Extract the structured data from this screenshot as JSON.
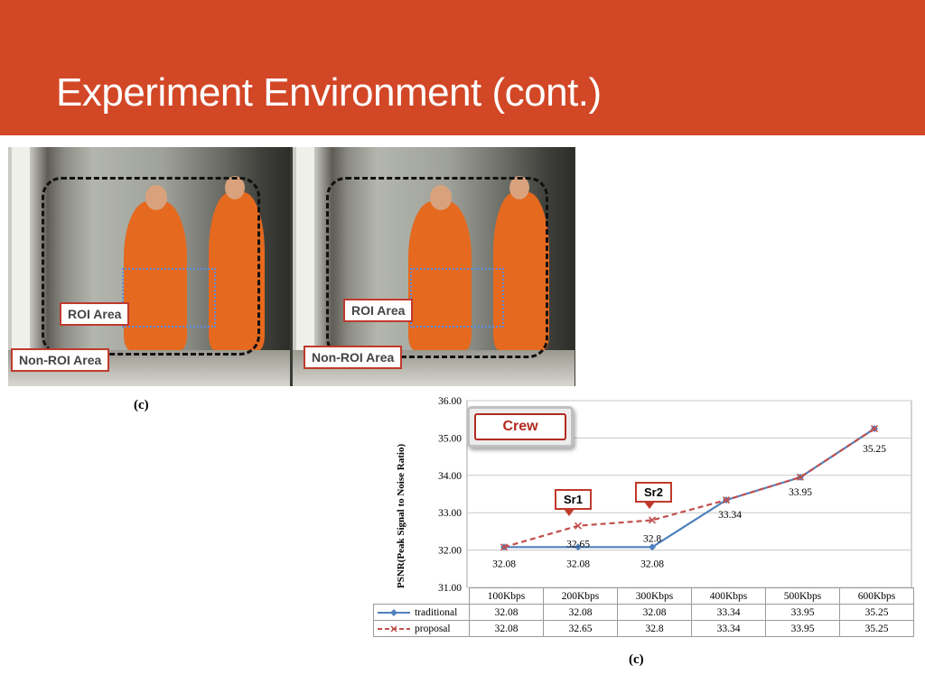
{
  "slide": {
    "title": "Experiment Environment (cont.)",
    "header_color": "#d24726"
  },
  "photos": {
    "roi_label": "ROI Area",
    "nonroi_label": "Non-ROI Area",
    "caption": "(c)"
  },
  "chart_data": {
    "type": "line",
    "ylabel": "PSNR(Peak Signal to Noise Ratio)",
    "ylim": [
      31.0,
      36.0
    ],
    "yticks": [
      "31.00",
      "32.00",
      "33.00",
      "34.00",
      "35.00",
      "36.00"
    ],
    "categories": [
      "100Kbps",
      "200Kbps",
      "300Kbps",
      "400Kbps",
      "500Kbps",
      "600Kbps"
    ],
    "grid": true,
    "series": [
      {
        "name": "traditional",
        "values": [
          32.08,
          32.08,
          32.08,
          33.34,
          33.95,
          35.25
        ],
        "labels": [
          "32.08",
          "32.08",
          "32.08",
          "33.34",
          "33.95",
          "35.25"
        ],
        "color": "#4f81bd",
        "style": "solid",
        "marker": "diamond"
      },
      {
        "name": "proposal",
        "values": [
          32.08,
          32.65,
          32.8,
          33.34,
          33.95,
          35.25
        ],
        "labels": [
          "32.08",
          "32.65",
          "32.8",
          "33.34",
          "33.95",
          "35.25"
        ],
        "color": "#c0504d",
        "style": "dashed",
        "marker": "x"
      }
    ],
    "point_labels": [
      "32.08",
      "32.08",
      "32.08",
      "33.34",
      "33.95",
      "35.25"
    ],
    "upper_labels": [
      "32.65",
      "32.8"
    ],
    "annotations": {
      "crew": "Crew",
      "sr1": "Sr1",
      "sr2": "Sr2"
    },
    "caption": "(c)"
  }
}
